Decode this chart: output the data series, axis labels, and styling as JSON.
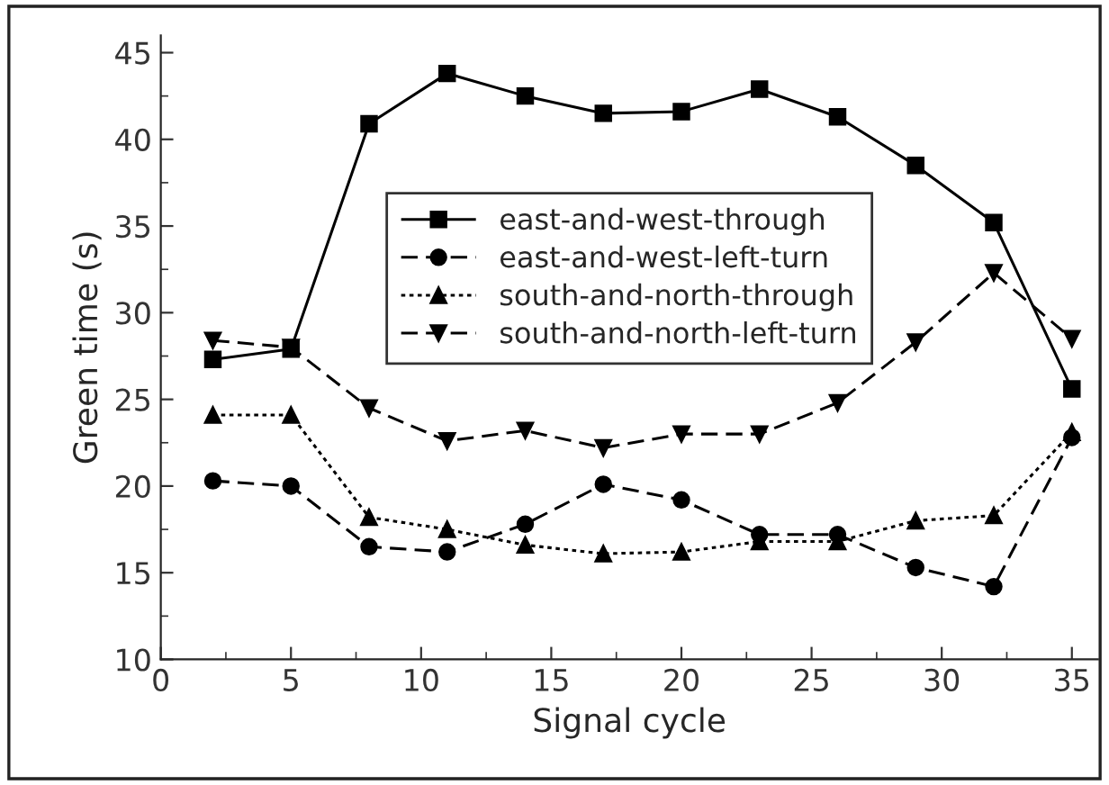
{
  "chart_data": {
    "type": "line",
    "xlabel": "Signal cycle",
    "ylabel": "Green time (s)",
    "x": [
      2,
      5,
      8,
      11,
      14,
      17,
      20,
      23,
      26,
      29,
      32,
      35
    ],
    "xlim": [
      0,
      36
    ],
    "xticks": [
      0,
      5,
      10,
      15,
      20,
      25,
      30,
      35
    ],
    "ylim": [
      10,
      46
    ],
    "yticks": [
      10,
      15,
      20,
      25,
      30,
      35,
      40,
      45
    ],
    "grid": false,
    "legend": "top",
    "series": [
      {
        "name": "east-and-west-through",
        "color": "#000000",
        "marker": "square",
        "line_style": "solid",
        "values": [
          27.3,
          27.9,
          40.9,
          43.8,
          42.5,
          41.5,
          41.6,
          42.9,
          41.3,
          38.5,
          35.2,
          25.6
        ]
      },
      {
        "name": "east-and-west-left-turn",
        "color": "#000000",
        "marker": "circle",
        "line_style": "dashed",
        "values": [
          20.3,
          20.0,
          16.5,
          16.2,
          17.8,
          20.1,
          19.2,
          17.2,
          17.2,
          15.3,
          14.2,
          22.8
        ]
      },
      {
        "name": "south-and-north-through",
        "color": "#000000",
        "marker": "triangle",
        "line_style": "dotted",
        "values": [
          24.1,
          24.1,
          18.2,
          17.5,
          16.6,
          16.1,
          16.2,
          16.8,
          16.8,
          18.0,
          18.3,
          23.1
        ]
      },
      {
        "name": "south-and-north-left-turn",
        "color": "#000000",
        "marker": "triangle_down",
        "line_style": "dashed",
        "values": [
          28.4,
          28.0,
          24.5,
          22.6,
          23.2,
          22.2,
          23.0,
          23.0,
          24.8,
          28.3,
          32.3,
          28.5
        ]
      }
    ]
  }
}
